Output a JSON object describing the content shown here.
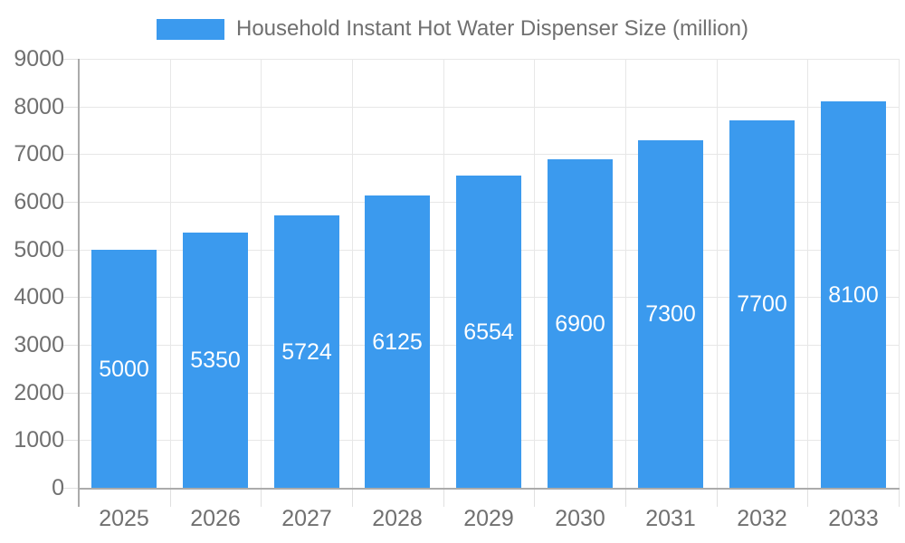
{
  "legend": {
    "label": "Household Instant Hot Water Dispenser Size (million)"
  },
  "chart_data": {
    "type": "bar",
    "title": "Household Instant Hot Water Dispenser Size (million)",
    "categories": [
      "2025",
      "2026",
      "2027",
      "2028",
      "2029",
      "2030",
      "2031",
      "2032",
      "2033"
    ],
    "values": [
      5000,
      5350,
      5724,
      6125,
      6554,
      6900,
      7300,
      7700,
      8100
    ],
    "value_labels": [
      "5000",
      "5350",
      "5724",
      "6125",
      "6554",
      "6900",
      "7300",
      "7700",
      "8100"
    ],
    "xlabel": "",
    "ylabel": "",
    "ylim": [
      0,
      9000
    ],
    "yticks": [
      0,
      1000,
      2000,
      3000,
      4000,
      5000,
      6000,
      7000,
      8000,
      9000
    ],
    "grid": true,
    "legend_position": "top",
    "bar_color": "#3b9aee",
    "value_label_color": "#ffffff",
    "axis_label_color": "#707070",
    "gridline_color": "#e7e7e7",
    "axis_line_color": "#ababab"
  }
}
